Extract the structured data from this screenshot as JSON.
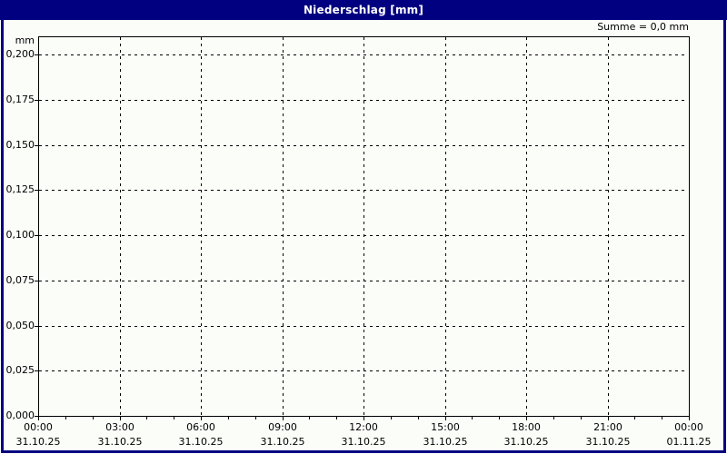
{
  "window": {
    "title": "Niederschlag [mm]"
  },
  "summary": {
    "text": "Summe = 0,0 mm"
  },
  "colors": {
    "frame": "#000080",
    "title_text": "#ffffff",
    "background": "#fbfdf8",
    "plot_border": "#000000",
    "grid": "#000000",
    "label_text": "#000000"
  },
  "chart_data": {
    "type": "bar",
    "title": "Niederschlag [mm]",
    "ylabel_unit": "mm",
    "summary_annotation": "Summe = 0,0 mm",
    "grid_style": "dashed",
    "legend": "none",
    "ylim": [
      0,
      0.2
    ],
    "ytick_step": 0.025,
    "yticks": [
      {
        "value": 0.0,
        "label": "0,000"
      },
      {
        "value": 0.025,
        "label": "0,025"
      },
      {
        "value": 0.05,
        "label": "0,050"
      },
      {
        "value": 0.075,
        "label": "0,075"
      },
      {
        "value": 0.1,
        "label": "0,100"
      },
      {
        "value": 0.125,
        "label": "0,125"
      },
      {
        "value": 0.15,
        "label": "0,150"
      },
      {
        "value": 0.175,
        "label": "0,175"
      },
      {
        "value": 0.2,
        "label": "0,200"
      }
    ],
    "x_total_hours": 24,
    "x_minor_tick_hours": 1,
    "xticks": [
      {
        "hour": 0,
        "time": "00:00",
        "date": "31.10.25"
      },
      {
        "hour": 3,
        "time": "03:00",
        "date": "31.10.25"
      },
      {
        "hour": 6,
        "time": "06:00",
        "date": "31.10.25"
      },
      {
        "hour": 9,
        "time": "09:00",
        "date": "31.10.25"
      },
      {
        "hour": 12,
        "time": "12:00",
        "date": "31.10.25"
      },
      {
        "hour": 15,
        "time": "15:00",
        "date": "31.10.25"
      },
      {
        "hour": 18,
        "time": "18:00",
        "date": "31.10.25"
      },
      {
        "hour": 21,
        "time": "21:00",
        "date": "31.10.25"
      },
      {
        "hour": 24,
        "time": "00:00",
        "date": "01.11.25"
      }
    ],
    "series": [
      {
        "name": "Niederschlag",
        "unit": "mm",
        "values": [],
        "total": 0.0
      }
    ]
  }
}
